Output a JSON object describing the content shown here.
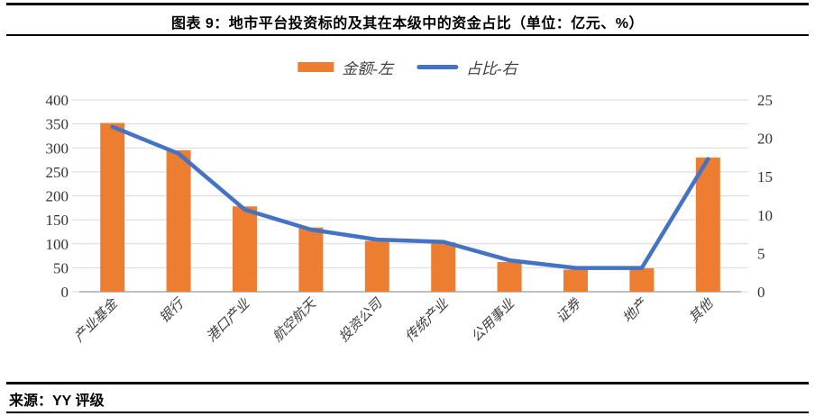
{
  "header": {
    "title": "图表 9：地市平台投资标的及其在本级中的资金占比（单位：亿元、%）"
  },
  "footer": {
    "source": "来源：YY 评级"
  },
  "chart_data": {
    "type": "combo",
    "title": "图表 9：地市平台投资标的及其在本级中的资金占比（单位：亿元、%）",
    "categories": [
      "产业基金",
      "银行",
      "港口产业",
      "航空航天",
      "投资公司",
      "传统产业",
      "公用事业",
      "证券",
      "地产",
      "其他"
    ],
    "series": [
      {
        "name": "金额-左",
        "type": "bar",
        "axis": "left",
        "color": "#ED7D31",
        "values": [
          352,
          295,
          178,
          134,
          106,
          103,
          62,
          46,
          49,
          280
        ]
      },
      {
        "name": "占比-右",
        "type": "line",
        "axis": "right",
        "color": "#4472C4",
        "values": [
          21.5,
          18,
          10.7,
          8.1,
          6.8,
          6.5,
          4.1,
          3.1,
          3.1,
          17.3
        ]
      }
    ],
    "left_axis": {
      "min": 0,
      "max": 400,
      "step": 50,
      "labels": [
        "0",
        "50",
        "100",
        "150",
        "200",
        "250",
        "300",
        "350",
        "400"
      ]
    },
    "right_axis": {
      "min": 0,
      "max": 25,
      "step": 5,
      "labels": [
        "0",
        "5",
        "10",
        "15",
        "20",
        "25"
      ]
    },
    "grid": true,
    "grid_color": "#D9D9D9",
    "axis_line_color": "#BFBFBF",
    "axis_text_color": "#333333",
    "category_text_color": "#404040",
    "legend_position": "top"
  }
}
